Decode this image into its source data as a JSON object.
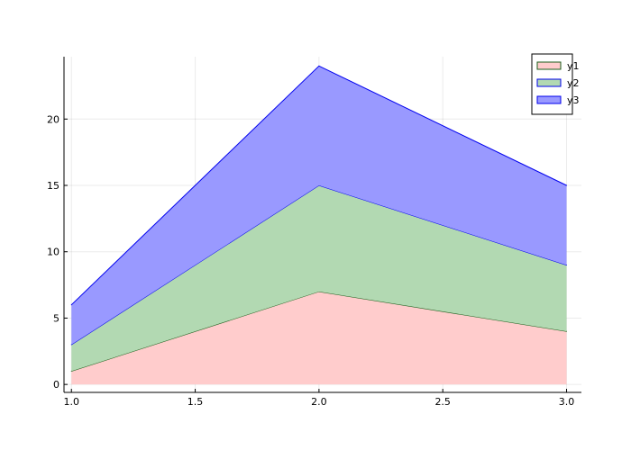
{
  "chart_data": {
    "type": "area",
    "stacked": true,
    "x": [
      1.0,
      2.0,
      3.0
    ],
    "series": [
      {
        "name": "y1",
        "values": [
          1,
          7,
          4
        ],
        "fill": "#ffcccc",
        "line": "#1a5c1a"
      },
      {
        "name": "y2",
        "values": [
          2,
          8,
          5
        ],
        "fill": "#b2d9b2",
        "line": "#0000ee"
      },
      {
        "name": "y3",
        "values": [
          3,
          9,
          6
        ],
        "fill": "#9999ff",
        "line": "#0000ee"
      }
    ],
    "xticks": [
      "1.0",
      "1.5",
      "2.0",
      "2.5",
      "3.0"
    ],
    "xtick_values": [
      1.0,
      1.5,
      2.0,
      2.5,
      3.0
    ],
    "yticks": [
      "0",
      "5",
      "10",
      "15",
      "20"
    ],
    "ytick_values": [
      0,
      5,
      10,
      15,
      20
    ],
    "xlim": [
      0.97,
      3.06
    ],
    "ylim": [
      -0.6,
      24.7
    ],
    "grid": true,
    "legend_position": "top-right",
    "title": "",
    "xlabel": "",
    "ylabel": ""
  }
}
